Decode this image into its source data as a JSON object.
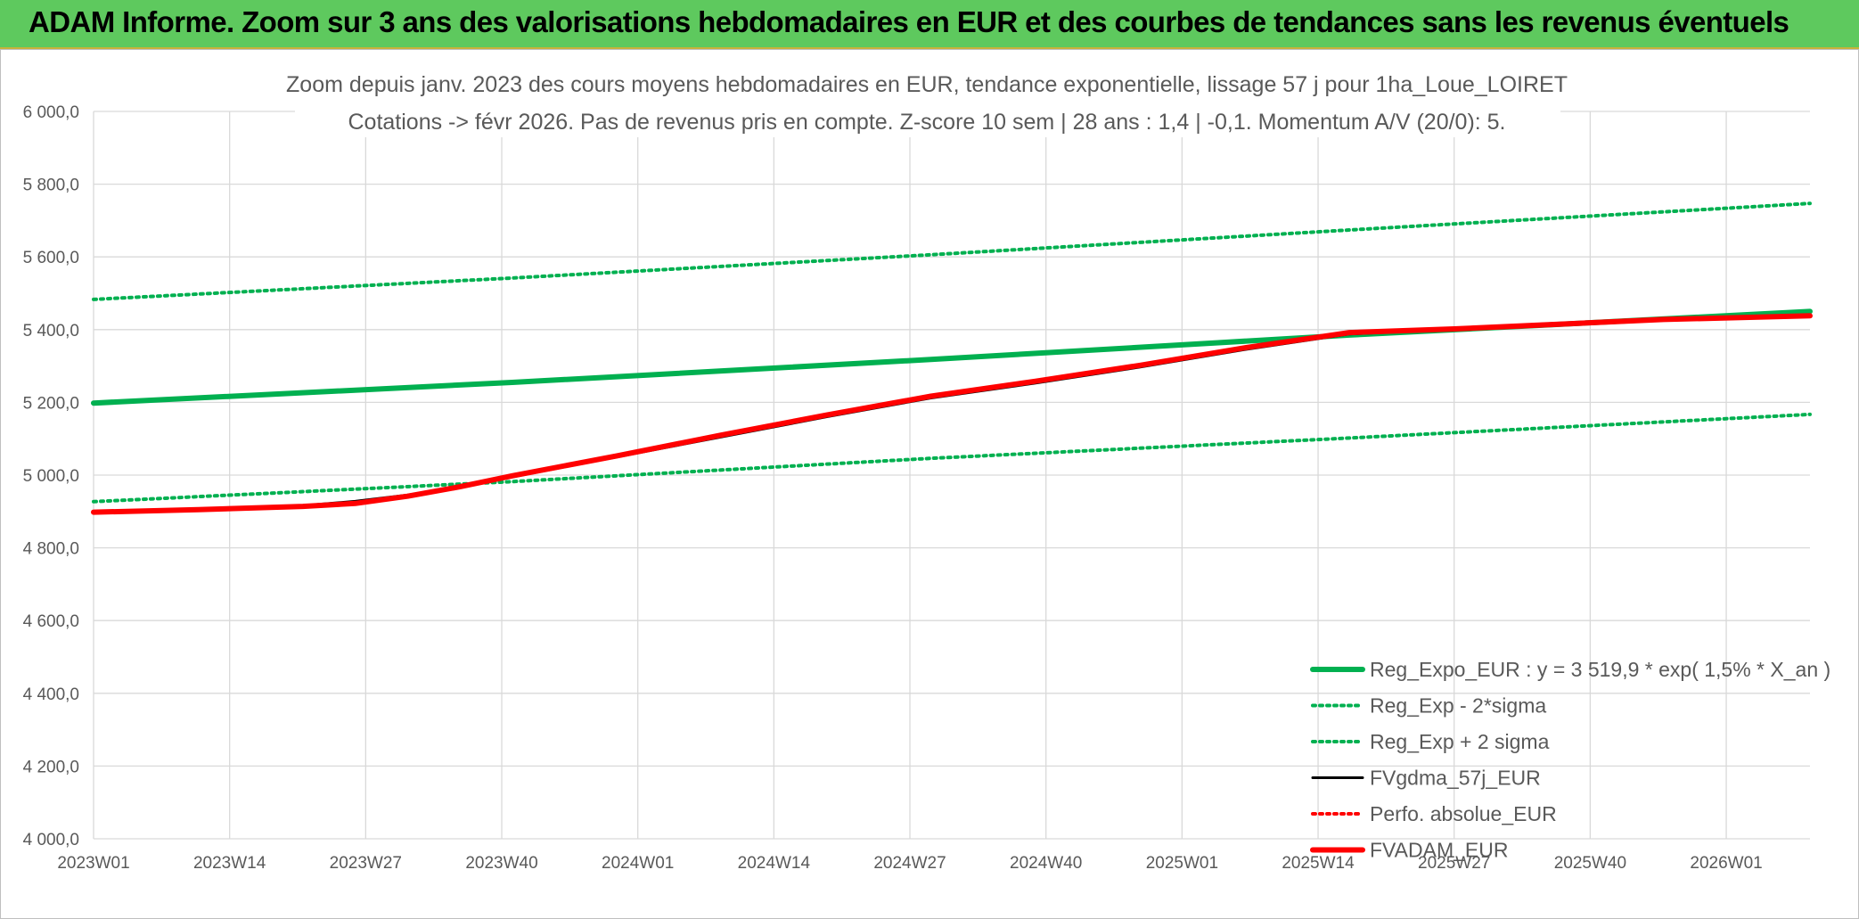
{
  "banner": {
    "title": "ADAM Informe. Zoom sur 3 ans des valorisations hebdomadaires en EUR et des courbes de tendances sans les revenus éventuels"
  },
  "chart_data": {
    "type": "line",
    "title_line1": "Zoom depuis janv. 2023 des cours moyens hebdomadaires en EUR, tendance exponentielle, lissage 57 j pour 1ha_Loue_LOIRET",
    "title_line2": "Cotations -> févr 2026. Pas de revenus pris en compte. Z-score 10 sem | 28 ans : 1,4 | -0,1. Momentum A/V (20/0): 5.",
    "xlabel": "",
    "ylabel": "",
    "grid": true,
    "legend_position": "bottom-right",
    "x_ticks": [
      "2023W01",
      "2023W14",
      "2023W27",
      "2023W40",
      "2024W01",
      "2024W14",
      "2024W27",
      "2024W40",
      "2025W01",
      "2025W14",
      "2025W27",
      "2025W40",
      "2026W01"
    ],
    "x_range": [
      0,
      164
    ],
    "ylim": [
      4000,
      6000
    ],
    "y_ticks": [
      "4 000,0",
      "4 200,0",
      "4 400,0",
      "4 600,0",
      "4 800,0",
      "5 000,0",
      "5 200,0",
      "5 400,0",
      "5 600,0",
      "5 800,0",
      "6 000,0"
    ],
    "y_tick_values": [
      4000,
      4200,
      4400,
      4600,
      4800,
      5000,
      5200,
      5400,
      5600,
      5800,
      6000
    ],
    "series": [
      {
        "name": "Reg_Expo_EUR : y = 3 519,9 * exp( 1,5% *  X_an )",
        "color": "#00b050",
        "style": "solid-thick",
        "points": [
          [
            0,
            5198
          ],
          [
            40,
            5255
          ],
          [
            80,
            5318
          ],
          [
            120,
            5385
          ],
          [
            164,
            5450
          ]
        ]
      },
      {
        "name": "Reg_Exp - 2*sigma",
        "color": "#00b050",
        "style": "dotted",
        "points": [
          [
            0,
            4927
          ],
          [
            40,
            4982
          ],
          [
            80,
            5046
          ],
          [
            120,
            5102
          ],
          [
            164,
            5167
          ]
        ]
      },
      {
        "name": "Reg_Exp + 2 sigma",
        "color": "#00b050",
        "style": "dotted",
        "points": [
          [
            0,
            5483
          ],
          [
            40,
            5542
          ],
          [
            80,
            5606
          ],
          [
            120,
            5674
          ],
          [
            164,
            5747
          ]
        ]
      },
      {
        "name": "FVgdma_57j_EUR",
        "color": "#000000",
        "style": "solid",
        "points": [
          [
            0,
            4898
          ],
          [
            10,
            4903
          ],
          [
            20,
            4916
          ],
          [
            25,
            4928
          ],
          [
            30,
            4945
          ],
          [
            35,
            4968
          ],
          [
            40,
            4995
          ],
          [
            50,
            5050
          ],
          [
            60,
            5105
          ],
          [
            70,
            5160
          ],
          [
            80,
            5212
          ],
          [
            90,
            5253
          ],
          [
            100,
            5297
          ],
          [
            110,
            5345
          ],
          [
            120,
            5388
          ],
          [
            130,
            5400
          ],
          [
            140,
            5413
          ],
          [
            150,
            5427
          ],
          [
            164,
            5440
          ]
        ]
      },
      {
        "name": "Perfo. absolue_EUR",
        "color": "#ff0000",
        "style": "dotted",
        "points": []
      },
      {
        "name": "FVADAM_EUR",
        "color": "#ff0000",
        "style": "solid-thick",
        "points": [
          [
            0,
            4898
          ],
          [
            10,
            4905
          ],
          [
            20,
            4914
          ],
          [
            25,
            4922
          ],
          [
            30,
            4942
          ],
          [
            35,
            4968
          ],
          [
            40,
            4998
          ],
          [
            50,
            5053
          ],
          [
            60,
            5110
          ],
          [
            70,
            5165
          ],
          [
            80,
            5217
          ],
          [
            90,
            5258
          ],
          [
            100,
            5302
          ],
          [
            110,
            5350
          ],
          [
            120,
            5392
          ],
          [
            130,
            5402
          ],
          [
            140,
            5415
          ],
          [
            150,
            5428
          ],
          [
            164,
            5438
          ]
        ]
      }
    ]
  }
}
